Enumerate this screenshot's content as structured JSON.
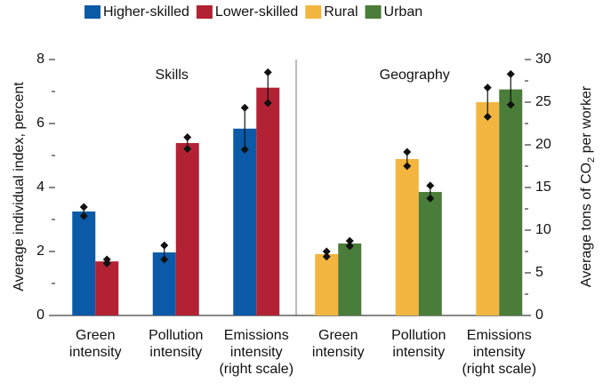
{
  "chart_data": {
    "type": "bar",
    "ylabel": "Average individual index, percent",
    "y2label": {
      "text": "Average tons of CO",
      "subscript": "2",
      "suffix": " per worker"
    },
    "ylim": [
      0,
      8
    ],
    "yticks": [
      0,
      2,
      4,
      6,
      8
    ],
    "yminorticks": [
      1,
      3,
      5,
      7
    ],
    "y2lim": [
      0,
      30
    ],
    "y2ticks": [
      0,
      5,
      10,
      15,
      20,
      25,
      30
    ],
    "y2minorticks": [
      2.5,
      7.5,
      12.5,
      17.5,
      22.5,
      27.5
    ],
    "legend": "top",
    "categories": [
      [
        "Green",
        "intensity"
      ],
      [
        "Pollution",
        "intensity"
      ],
      [
        "Emissions",
        "intensity",
        "(right scale)"
      ]
    ],
    "category_axis": [
      "y",
      "y",
      "y2"
    ],
    "panels": [
      {
        "title": "Skills",
        "series": [
          {
            "name": "Higher-skilled",
            "color": "#0b5aa8",
            "values": [
              3.25,
              1.97,
              21.9
            ],
            "errors": [
              0.14,
              0.22,
              2.45
            ]
          },
          {
            "name": "Lower-skilled",
            "color": "#b22234",
            "values": [
              1.69,
              5.39,
              26.7
            ],
            "errors": [
              0.06,
              0.18,
              1.8
            ]
          }
        ]
      },
      {
        "title": "Geography",
        "series": [
          {
            "name": "Rural",
            "color": "#f2b640",
            "values": [
              1.92,
              4.89,
              25.0
            ],
            "errors": [
              0.08,
              0.22,
              1.7
            ]
          },
          {
            "name": "Urban",
            "color": "#4a7c3a",
            "values": [
              2.25,
              3.86,
              26.5
            ],
            "errors": [
              0.08,
              0.2,
              1.8
            ]
          }
        ]
      }
    ]
  }
}
